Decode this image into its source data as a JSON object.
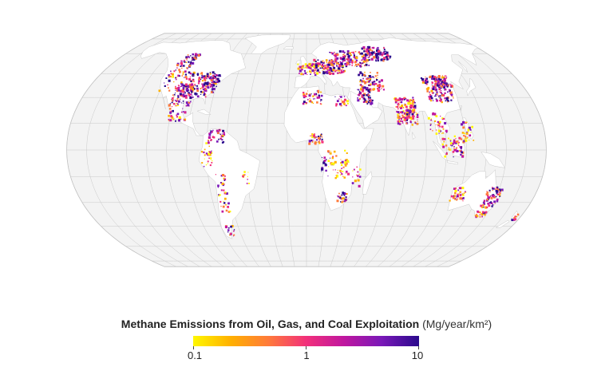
{
  "legend": {
    "title": "Methane Emissions from Oil, Gas, and Coal Exploitation",
    "units": "(Mg/year/km²)",
    "ticks": [
      {
        "label": "0.1",
        "value": 0.1
      },
      {
        "label": "1",
        "value": 1
      },
      {
        "label": "10",
        "value": 10
      }
    ],
    "scale": "log",
    "colors": [
      "#fff700",
      "#ffb000",
      "#ff7a3a",
      "#f2307a",
      "#c0179f",
      "#7a18b8",
      "#2a0a8c"
    ]
  },
  "map": {
    "projection": "equal-earth",
    "ocean_color": "#f3f3f3",
    "land_color": "#ffffff",
    "grid_color": "#c9c9c9"
  }
}
